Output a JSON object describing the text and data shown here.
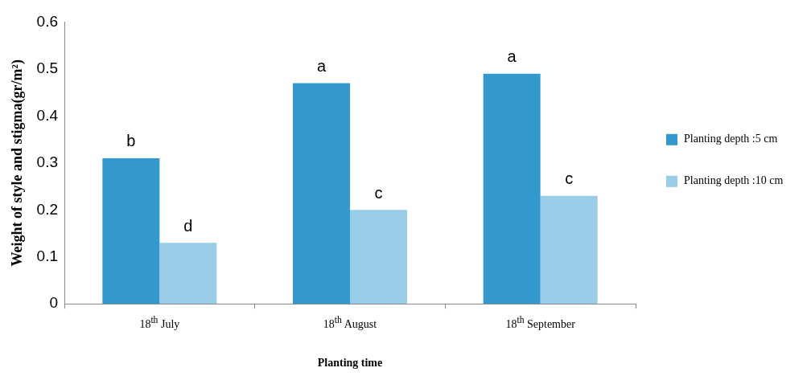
{
  "chart_data": {
    "type": "bar",
    "xlabel": "Planting time",
    "ylabel": "Weight of style and stigma(gr/m²)",
    "categories": [
      "18$^{th}$ July",
      "18$^{th}$ August",
      "18$^{th}$ September"
    ],
    "series": [
      {
        "name": "Planting depth :5 cm",
        "color": "#3399cc",
        "values": [
          0.31,
          0.47,
          0.49
        ]
      },
      {
        "name": "Planting depth :10 cm",
        "color": "#99cce6",
        "values": [
          0.13,
          0.2,
          0.23
        ]
      }
    ],
    "ylim": [
      0,
      0.6
    ],
    "yticks": [
      0,
      0.1,
      0.2,
      0.3,
      0.4,
      0.5,
      0.6
    ],
    "grid": false,
    "legend": "right",
    "annotations": [
      {
        "text": "b",
        "x": "18$^{th}$ July",
        "y": 0.31
      },
      {
        "text": "d",
        "x": "18$^{th}$ July",
        "y": 0.13
      },
      {
        "text": "a",
        "x": "18$^{th}$ August",
        "y": 0.47
      },
      {
        "text": "c",
        "x": "18$^{th}$ August",
        "y": 0.2
      },
      {
        "text": "a",
        "x": "18$^{th}$ September",
        "y": 0.49
      },
      {
        "text": "c",
        "x": "18$^{th}$ September",
        "y": 0.23
      }
    ]
  }
}
